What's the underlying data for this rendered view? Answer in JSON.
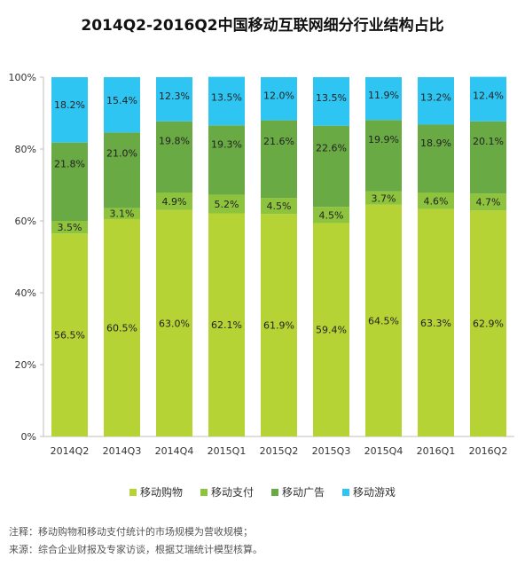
{
  "chart_data": {
    "type": "bar",
    "stacked": true,
    "title": "2014Q2-2016Q2中国移动互联网细分行业结构占比",
    "categories": [
      "2014Q2",
      "2014Q3",
      "2014Q4",
      "2015Q1",
      "2015Q2",
      "2015Q3",
      "2015Q4",
      "2016Q1",
      "2016Q2"
    ],
    "series": [
      {
        "name": "移动购物",
        "color": "#b5d335",
        "values": [
          56.5,
          60.5,
          63.0,
          62.1,
          61.9,
          59.4,
          64.5,
          63.3,
          62.9
        ]
      },
      {
        "name": "移动支付",
        "color": "#8ec33e",
        "values": [
          3.5,
          3.1,
          4.9,
          5.2,
          4.5,
          4.5,
          3.7,
          4.6,
          4.7
        ]
      },
      {
        "name": "移动广告",
        "color": "#6aaa44",
        "values": [
          21.8,
          21.0,
          19.8,
          19.3,
          21.6,
          22.6,
          19.9,
          18.9,
          20.1
        ]
      },
      {
        "name": "移动游戏",
        "color": "#2ec5f2",
        "values": [
          18.2,
          15.4,
          12.3,
          13.5,
          12.0,
          13.5,
          11.9,
          13.2,
          12.4
        ]
      }
    ],
    "ylim": [
      0,
      100
    ],
    "yticks": [
      "0%",
      "20%",
      "40%",
      "60%",
      "80%",
      "100%"
    ],
    "legend_position": "bottom",
    "grid": false
  },
  "notes": {
    "line1": "注释：移动购物和移动支付统计的市场规模为营收规模；",
    "line2": "来源：综合企业财报及专家访谈，根据艾瑞统计模型核算。"
  }
}
